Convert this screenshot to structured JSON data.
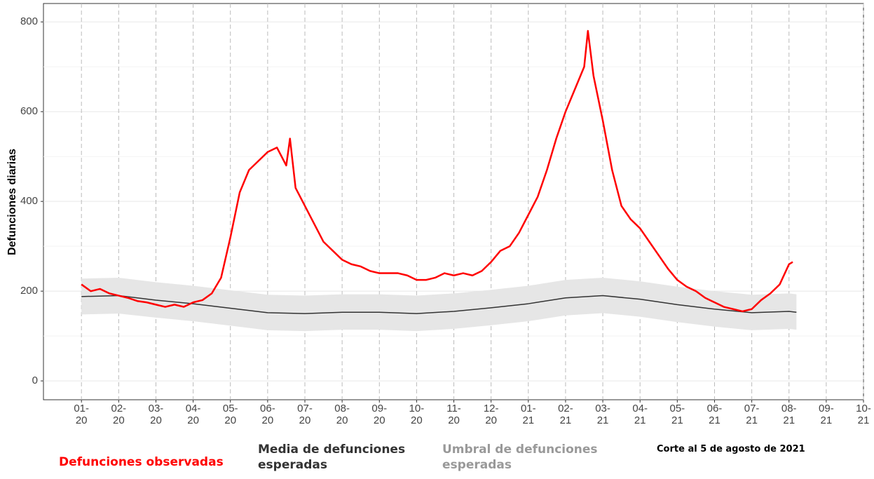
{
  "chart_data": {
    "type": "line",
    "y_label": "Defunciones diarias",
    "annotation": "Corte al 5 de agosto de 2021",
    "xlim": [
      -1.02,
      21.0
    ],
    "ylim": [
      -42,
      841
    ],
    "yticks": [
      0,
      200,
      400,
      600,
      800
    ],
    "xticks": [
      {
        "value": 0,
        "label": "01-\n20"
      },
      {
        "value": 1,
        "label": "02-\n20"
      },
      {
        "value": 2,
        "label": "03-\n20"
      },
      {
        "value": 3,
        "label": "04-\n20"
      },
      {
        "value": 4,
        "label": "05-\n20"
      },
      {
        "value": 5,
        "label": "06-\n20"
      },
      {
        "value": 6,
        "label": "07-\n20"
      },
      {
        "value": 7,
        "label": "08-\n20"
      },
      {
        "value": 8,
        "label": "09-\n20"
      },
      {
        "value": 9,
        "label": "10-\n20"
      },
      {
        "value": 10,
        "label": "11-\n20"
      },
      {
        "value": 11,
        "label": "12-\n20"
      },
      {
        "value": 12,
        "label": "01-\n21"
      },
      {
        "value": 13,
        "label": "02-\n21"
      },
      {
        "value": 14,
        "label": "03-\n21"
      },
      {
        "value": 15,
        "label": "04-\n21"
      },
      {
        "value": 16,
        "label": "05-\n21"
      },
      {
        "value": 17,
        "label": "06-\n21"
      },
      {
        "value": 18,
        "label": "07-\n21"
      },
      {
        "value": 19,
        "label": "08-\n21"
      },
      {
        "value": 20,
        "label": "09-\n21"
      },
      {
        "value": 21,
        "label": "10-\n21"
      }
    ],
    "grid": true,
    "series": [
      {
        "name": "Umbral de defunciones esperadas",
        "color": "#999999",
        "fill": "#e6e6e6",
        "x": [
          0,
          1,
          2,
          3,
          4,
          5,
          6,
          7,
          8,
          9,
          10,
          11,
          12,
          13,
          14,
          15,
          16,
          17,
          18,
          19,
          19.2
        ],
        "lower": [
          148,
          150,
          141,
          133,
          123,
          113,
          111,
          114,
          114,
          111,
          116,
          124,
          133,
          146,
          151,
          143,
          131,
          121,
          113,
          116,
          114
        ],
        "values": [
          228,
          230,
          220,
          212,
          202,
          192,
          190,
          193,
          193,
          190,
          195,
          203,
          212,
          225,
          230,
          222,
          210,
          200,
          192,
          195,
          193
        ]
      },
      {
        "name": "Media de defunciones esperadas",
        "color": "#333333",
        "x": [
          0,
          1,
          2,
          3,
          4,
          5,
          6,
          7,
          8,
          9,
          10,
          11,
          12,
          13,
          14,
          15,
          16,
          17,
          18,
          19,
          19.2
        ],
        "values": [
          188,
          190,
          180,
          172,
          162,
          152,
          150,
          153,
          153,
          150,
          155,
          163,
          172,
          185,
          190,
          182,
          170,
          160,
          152,
          155,
          153
        ]
      },
      {
        "name": "Defunciones observadas",
        "color": "#ff0000",
        "x": [
          0,
          0.25,
          0.5,
          0.75,
          1,
          1.25,
          1.5,
          1.75,
          2,
          2.25,
          2.5,
          2.75,
          3,
          3.25,
          3.5,
          3.75,
          4,
          4.25,
          4.5,
          4.75,
          5,
          5.25,
          5.5,
          5.6,
          5.75,
          6,
          6.25,
          6.5,
          6.75,
          7,
          7.25,
          7.5,
          7.75,
          8,
          8.25,
          8.5,
          8.75,
          9,
          9.25,
          9.5,
          9.75,
          10,
          10.25,
          10.5,
          10.75,
          11,
          11.25,
          11.5,
          11.75,
          12,
          12.25,
          12.5,
          12.75,
          13,
          13.25,
          13.5,
          13.6,
          13.75,
          14,
          14.25,
          14.5,
          14.75,
          15,
          15.25,
          15.5,
          15.75,
          16,
          16.25,
          16.5,
          16.75,
          17,
          17.25,
          17.5,
          17.75,
          18,
          18.25,
          18.5,
          18.75,
          19,
          19.1
        ],
        "values": [
          215,
          200,
          205,
          195,
          190,
          185,
          178,
          175,
          170,
          165,
          170,
          165,
          175,
          180,
          195,
          230,
          320,
          420,
          470,
          490,
          510,
          520,
          480,
          540,
          430,
          390,
          350,
          310,
          290,
          270,
          260,
          255,
          245,
          240,
          240,
          240,
          235,
          225,
          225,
          230,
          240,
          235,
          240,
          235,
          245,
          265,
          290,
          300,
          330,
          370,
          410,
          470,
          540,
          600,
          650,
          700,
          780,
          680,
          580,
          470,
          390,
          360,
          340,
          310,
          280,
          250,
          225,
          210,
          200,
          185,
          175,
          165,
          160,
          155,
          160,
          180,
          195,
          215,
          260,
          265
        ]
      }
    ]
  }
}
